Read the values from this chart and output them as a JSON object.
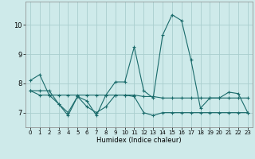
{
  "xlabel": "Humidex (Indice chaleur)",
  "x": [
    0,
    1,
    2,
    3,
    4,
    5,
    6,
    7,
    8,
    9,
    10,
    11,
    12,
    13,
    14,
    15,
    16,
    17,
    18,
    19,
    20,
    21,
    22,
    23
  ],
  "line1": [
    8.1,
    8.3,
    7.6,
    7.3,
    6.9,
    7.55,
    7.4,
    6.9,
    7.6,
    8.05,
    8.05,
    9.25,
    7.75,
    7.5,
    9.65,
    10.35,
    10.15,
    8.8,
    7.15,
    7.5,
    7.5,
    7.7,
    7.65,
    7.0
  ],
  "line2": [
    7.75,
    7.6,
    7.6,
    7.6,
    7.6,
    7.6,
    7.6,
    7.6,
    7.6,
    7.6,
    7.6,
    7.6,
    7.55,
    7.55,
    7.5,
    7.5,
    7.5,
    7.5,
    7.5,
    7.5,
    7.5,
    7.5,
    7.5,
    7.5
  ],
  "line3": [
    7.75,
    7.75,
    7.75,
    7.3,
    7.0,
    7.55,
    7.2,
    7.0,
    7.2,
    7.6,
    7.6,
    7.55,
    7.0,
    6.9,
    7.0,
    7.0,
    7.0,
    7.0,
    7.0,
    7.0,
    7.0,
    7.0,
    7.0,
    7.0
  ],
  "line_color": "#1a6b6b",
  "bg_color": "#ceeaea",
  "grid_color": "#aacece",
  "ylim": [
    6.5,
    10.8
  ],
  "yticks": [
    7,
    8,
    9,
    10
  ],
  "xlim": [
    -0.5,
    23.5
  ]
}
